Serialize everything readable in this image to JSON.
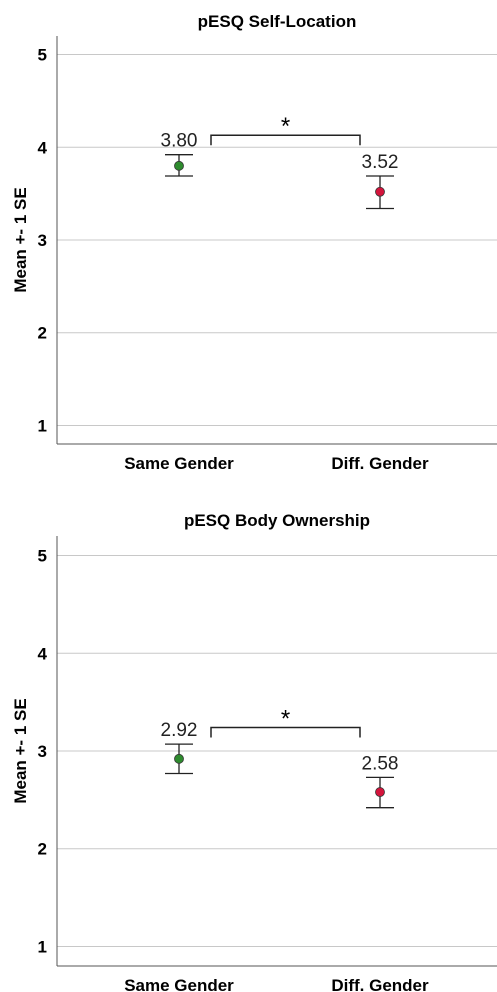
{
  "chart_data": [
    {
      "type": "scatter",
      "title": "pESQ Self-Location",
      "ylabel": "Mean +- 1 SE",
      "xlabel": "",
      "categories": [
        "Same Gender",
        "Diff. Gender"
      ],
      "yticks": [
        "1",
        "2",
        "3",
        "4",
        "5"
      ],
      "ylim": [
        0.8,
        5.2
      ],
      "grid": true,
      "points": [
        {
          "category": "Same Gender",
          "mean": 3.8,
          "se_low": 3.69,
          "se_high": 3.92,
          "label": "3.80",
          "color": "#2e8b2e"
        },
        {
          "category": "Diff. Gender",
          "mean": 3.52,
          "se_low": 3.34,
          "se_high": 3.69,
          "label": "3.52",
          "color": "#d4143c"
        }
      ],
      "significance": {
        "label": "*",
        "y": 4.13
      }
    },
    {
      "type": "scatter",
      "title": "pESQ Body Ownership",
      "ylabel": "Mean +- 1 SE",
      "xlabel": "",
      "categories": [
        "Same Gender",
        "Diff. Gender"
      ],
      "yticks": [
        "1",
        "2",
        "3",
        "4",
        "5"
      ],
      "ylim": [
        0.8,
        5.2
      ],
      "grid": true,
      "points": [
        {
          "category": "Same Gender",
          "mean": 2.92,
          "se_low": 2.77,
          "se_high": 3.07,
          "label": "2.92",
          "color": "#2e8b2e"
        },
        {
          "category": "Diff. Gender",
          "mean": 2.58,
          "se_low": 2.42,
          "se_high": 2.73,
          "label": "2.58",
          "color": "#d4143c"
        }
      ],
      "significance": {
        "label": "*",
        "y": 3.24
      }
    }
  ]
}
